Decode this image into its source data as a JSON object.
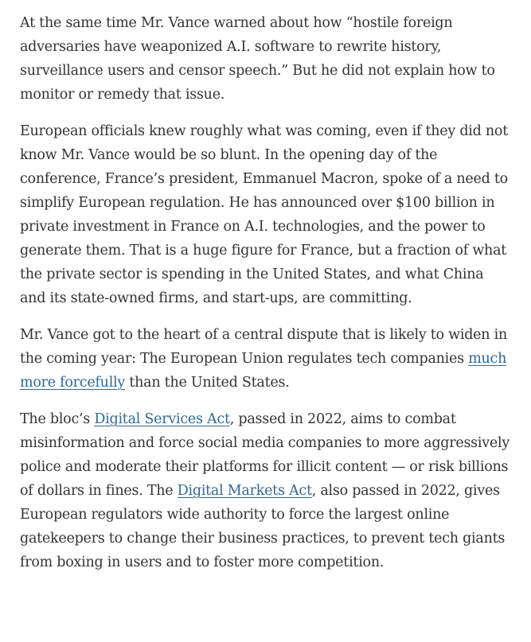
{
  "article": {
    "paragraphs": [
      {
        "segments": [
          {
            "text": "At the same time Mr. Vance warned about how “hostile foreign adversaries have weaponized A.I. software to rewrite history, surveillance users and censor speech.” But he did not explain how to monitor or remedy that issue."
          }
        ]
      },
      {
        "segments": [
          {
            "text": "European officials knew roughly what was coming, even if they did not know Mr. Vance would be so blunt. In the opening day of the conference, France’s president, Emmanuel Macron, spoke of a need to simplify European regulation. He has announced over $100 billion in private investment in France on A.I. technologies, and the power to generate them. That is a huge figure for France, but a fraction of what the private sector is spending in the United States, and what China and its state-owned firms, and start-ups, are committing."
          }
        ]
      },
      {
        "segments": [
          {
            "text": "Mr. Vance got to the heart of a central dispute that is likely to widen in the coming year: The European Union regulates tech companies "
          },
          {
            "text": "much more forcefully",
            "link": true
          },
          {
            "text": " than the United States."
          }
        ]
      },
      {
        "segments": [
          {
            "text": "The bloc’s "
          },
          {
            "text": "Digital Services Act",
            "link": true
          },
          {
            "text": ", passed in 2022, aims to combat misinformation and force social media companies to more aggressively police and moderate their platforms for illicit content — or risk billions of dollars in fines. The "
          },
          {
            "text": "Digital Markets Act",
            "link": true
          },
          {
            "text": ", also passed in 2022, gives European regulators wide authority to force the largest online gatekeepers to change their business practices, to prevent tech giants from boxing in users and to foster more competition."
          }
        ]
      }
    ],
    "colors": {
      "text": "#333333",
      "link": "#326891",
      "background": "#ffffff"
    }
  }
}
